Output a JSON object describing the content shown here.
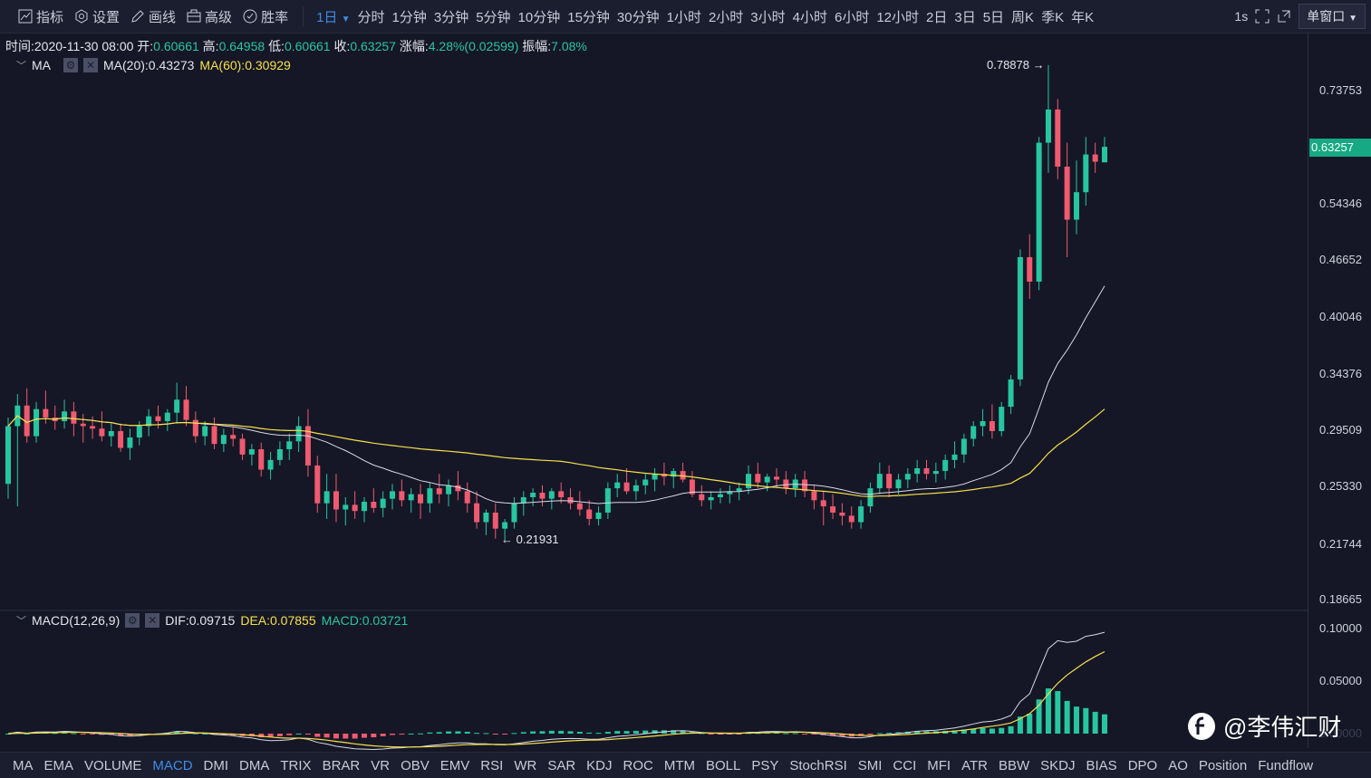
{
  "toolbar": {
    "tools": [
      {
        "icon": "indicator-icon",
        "label": "指标"
      },
      {
        "icon": "settings-gear-icon",
        "label": "设置"
      },
      {
        "icon": "pencil-icon",
        "label": "画线"
      },
      {
        "icon": "advanced-icon",
        "label": "高级"
      },
      {
        "icon": "winrate-icon",
        "label": "胜率"
      }
    ],
    "intervals": [
      "1日",
      "分时",
      "1分钟",
      "3分钟",
      "5分钟",
      "10分钟",
      "15分钟",
      "30分钟",
      "1小时",
      "2小时",
      "3小时",
      "4小时",
      "6小时",
      "12小时",
      "2日",
      "3日",
      "5日",
      "周K",
      "季K",
      "年K"
    ],
    "active_interval": "1日",
    "right": {
      "refresh": "1s",
      "window_mode": "单窗口"
    }
  },
  "info": {
    "time_label": "时间:",
    "time": "2020-11-30 08:00",
    "open_label": "开:",
    "open": "0.60661",
    "high_label": "高:",
    "high": "0.64958",
    "low_label": "低:",
    "low": "0.60661",
    "close_label": "收:",
    "close": "0.63257",
    "change_label": "涨幅:",
    "change": "4.28%(0.02599)",
    "amp_label": "振幅:",
    "amp": "7.08%"
  },
  "ma_legend": {
    "name": "MA",
    "ma20": "MA(20):0.43273",
    "ma60": "MA(60):0.30929"
  },
  "macd_legend": {
    "name": "MACD(12,26,9)",
    "dif": "DIF:0.09715",
    "dea": "DEA:0.07855",
    "macd": "MACD:0.03721"
  },
  "price_axis": {
    "ticks": [
      "0.73753",
      "0.63257",
      "0.54346",
      "0.46652",
      "0.40046",
      "0.34376",
      "0.29509",
      "0.25330",
      "0.21744",
      "0.18665"
    ],
    "current": "0.63257"
  },
  "macd_axis": {
    "ticks": [
      "0.10000",
      "0.05000",
      "0.00000"
    ]
  },
  "annotations": {
    "high": "0.78878 →",
    "low": "← 0.21931"
  },
  "indicators": [
    "MA",
    "EMA",
    "VOLUME",
    "MACD",
    "DMI",
    "DMA",
    "TRIX",
    "BRAR",
    "VR",
    "OBV",
    "EMV",
    "RSI",
    "WR",
    "SAR",
    "KDJ",
    "ROC",
    "MTM",
    "BOLL",
    "PSY",
    "StochRSI",
    "SMI",
    "CCI",
    "MFI",
    "ATR",
    "BBW",
    "SKDJ",
    "BIAS",
    "DPO",
    "AO",
    "Position",
    "Fundflow"
  ],
  "active_indicator": "MACD",
  "watermark": "@李伟汇财",
  "colors": {
    "up": "#26c6a0",
    "down": "#ef5a6f",
    "ma20": "#d8dae6",
    "ma60": "#f5e04a",
    "bg": "#151726",
    "accent": "#3c8ce7"
  },
  "chart_data": {
    "type": "candlestick",
    "interval": "1日",
    "y_range": [
      0.18665,
      0.78878
    ],
    "scale": "log",
    "candles": [
      [
        0.255,
        0.305,
        0.245,
        0.298
      ],
      [
        0.298,
        0.325,
        0.24,
        0.315
      ],
      [
        0.315,
        0.33,
        0.285,
        0.29
      ],
      [
        0.29,
        0.318,
        0.285,
        0.312
      ],
      [
        0.312,
        0.328,
        0.3,
        0.305
      ],
      [
        0.305,
        0.315,
        0.295,
        0.302
      ],
      [
        0.302,
        0.32,
        0.296,
        0.31
      ],
      [
        0.31,
        0.318,
        0.29,
        0.3
      ],
      [
        0.3,
        0.308,
        0.285,
        0.298
      ],
      [
        0.298,
        0.306,
        0.288,
        0.296
      ],
      [
        0.296,
        0.31,
        0.286,
        0.29
      ],
      [
        0.29,
        0.3,
        0.282,
        0.294
      ],
      [
        0.294,
        0.3,
        0.278,
        0.281
      ],
      [
        0.281,
        0.296,
        0.272,
        0.289
      ],
      [
        0.289,
        0.302,
        0.283,
        0.298
      ],
      [
        0.298,
        0.312,
        0.29,
        0.306
      ],
      [
        0.306,
        0.315,
        0.296,
        0.302
      ],
      [
        0.302,
        0.312,
        0.294,
        0.309
      ],
      [
        0.309,
        0.335,
        0.3,
        0.32
      ],
      [
        0.32,
        0.332,
        0.298,
        0.303
      ],
      [
        0.303,
        0.31,
        0.285,
        0.29
      ],
      [
        0.29,
        0.302,
        0.283,
        0.298
      ],
      [
        0.298,
        0.305,
        0.28,
        0.284
      ],
      [
        0.284,
        0.296,
        0.278,
        0.291
      ],
      [
        0.291,
        0.298,
        0.282,
        0.288
      ],
      [
        0.288,
        0.292,
        0.272,
        0.276
      ],
      [
        0.276,
        0.284,
        0.268,
        0.28
      ],
      [
        0.28,
        0.285,
        0.26,
        0.265
      ],
      [
        0.265,
        0.278,
        0.258,
        0.272
      ],
      [
        0.272,
        0.286,
        0.268,
        0.28
      ],
      [
        0.28,
        0.292,
        0.272,
        0.286
      ],
      [
        0.286,
        0.306,
        0.278,
        0.298
      ],
      [
        0.298,
        0.312,
        0.26,
        0.268
      ],
      [
        0.268,
        0.275,
        0.236,
        0.242
      ],
      [
        0.242,
        0.262,
        0.232,
        0.25
      ],
      [
        0.25,
        0.262,
        0.23,
        0.238
      ],
      [
        0.238,
        0.246,
        0.228,
        0.241
      ],
      [
        0.241,
        0.25,
        0.232,
        0.237
      ],
      [
        0.237,
        0.246,
        0.23,
        0.243
      ],
      [
        0.243,
        0.252,
        0.236,
        0.239
      ],
      [
        0.239,
        0.25,
        0.233,
        0.245
      ],
      [
        0.245,
        0.255,
        0.238,
        0.25
      ],
      [
        0.25,
        0.258,
        0.24,
        0.244
      ],
      [
        0.244,
        0.252,
        0.236,
        0.248
      ],
      [
        0.248,
        0.255,
        0.232,
        0.242
      ],
      [
        0.242,
        0.256,
        0.236,
        0.252
      ],
      [
        0.252,
        0.262,
        0.242,
        0.248
      ],
      [
        0.248,
        0.258,
        0.24,
        0.254
      ],
      [
        0.254,
        0.264,
        0.244,
        0.25
      ],
      [
        0.25,
        0.256,
        0.236,
        0.242
      ],
      [
        0.242,
        0.25,
        0.226,
        0.23
      ],
      [
        0.23,
        0.238,
        0.222,
        0.236
      ],
      [
        0.236,
        0.242,
        0.22,
        0.226
      ],
      [
        0.226,
        0.232,
        0.219,
        0.23
      ],
      [
        0.23,
        0.246,
        0.226,
        0.242
      ],
      [
        0.242,
        0.25,
        0.234,
        0.246
      ],
      [
        0.246,
        0.252,
        0.24,
        0.249
      ],
      [
        0.249,
        0.254,
        0.24,
        0.245
      ],
      [
        0.245,
        0.252,
        0.238,
        0.25
      ],
      [
        0.25,
        0.256,
        0.242,
        0.246
      ],
      [
        0.246,
        0.252,
        0.238,
        0.242
      ],
      [
        0.242,
        0.25,
        0.234,
        0.238
      ],
      [
        0.238,
        0.244,
        0.228,
        0.232
      ],
      [
        0.232,
        0.24,
        0.228,
        0.236
      ],
      [
        0.236,
        0.256,
        0.232,
        0.252
      ],
      [
        0.252,
        0.262,
        0.246,
        0.256
      ],
      [
        0.256,
        0.266,
        0.248,
        0.25
      ],
      [
        0.25,
        0.258,
        0.244,
        0.254
      ],
      [
        0.254,
        0.262,
        0.248,
        0.258
      ],
      [
        0.258,
        0.266,
        0.25,
        0.262
      ],
      [
        0.262,
        0.27,
        0.254,
        0.26
      ],
      [
        0.26,
        0.266,
        0.252,
        0.264
      ],
      [
        0.264,
        0.27,
        0.256,
        0.258
      ],
      [
        0.258,
        0.264,
        0.246,
        0.248
      ],
      [
        0.248,
        0.254,
        0.24,
        0.244
      ],
      [
        0.244,
        0.25,
        0.238,
        0.246
      ],
      [
        0.246,
        0.252,
        0.242,
        0.248
      ],
      [
        0.248,
        0.254,
        0.242,
        0.25
      ],
      [
        0.25,
        0.256,
        0.244,
        0.252
      ],
      [
        0.252,
        0.268,
        0.248,
        0.262
      ],
      [
        0.262,
        0.27,
        0.252,
        0.256
      ],
      [
        0.256,
        0.262,
        0.25,
        0.26
      ],
      [
        0.26,
        0.266,
        0.252,
        0.258
      ],
      [
        0.258,
        0.264,
        0.248,
        0.252
      ],
      [
        0.252,
        0.262,
        0.246,
        0.258
      ],
      [
        0.258,
        0.264,
        0.246,
        0.25
      ],
      [
        0.25,
        0.254,
        0.238,
        0.244
      ],
      [
        0.244,
        0.25,
        0.228,
        0.24
      ],
      [
        0.24,
        0.248,
        0.232,
        0.236
      ],
      [
        0.236,
        0.242,
        0.228,
        0.234
      ],
      [
        0.234,
        0.24,
        0.226,
        0.23
      ],
      [
        0.23,
        0.244,
        0.226,
        0.24
      ],
      [
        0.24,
        0.256,
        0.236,
        0.252
      ],
      [
        0.252,
        0.27,
        0.248,
        0.262
      ],
      [
        0.262,
        0.268,
        0.246,
        0.252
      ],
      [
        0.252,
        0.262,
        0.248,
        0.258
      ],
      [
        0.258,
        0.266,
        0.252,
        0.262
      ],
      [
        0.262,
        0.272,
        0.256,
        0.266
      ],
      [
        0.266,
        0.272,
        0.258,
        0.262
      ],
      [
        0.262,
        0.27,
        0.256,
        0.264
      ],
      [
        0.264,
        0.276,
        0.258,
        0.272
      ],
      [
        0.272,
        0.286,
        0.266,
        0.276
      ],
      [
        0.276,
        0.292,
        0.27,
        0.288
      ],
      [
        0.288,
        0.302,
        0.282,
        0.298
      ],
      [
        0.298,
        0.312,
        0.29,
        0.302
      ],
      [
        0.302,
        0.316,
        0.288,
        0.294
      ],
      [
        0.294,
        0.318,
        0.29,
        0.314
      ],
      [
        0.314,
        0.342,
        0.308,
        0.338
      ],
      [
        0.338,
        0.48,
        0.332,
        0.47
      ],
      [
        0.47,
        0.5,
        0.42,
        0.44
      ],
      [
        0.44,
        0.65,
        0.43,
        0.64
      ],
      [
        0.64,
        0.789,
        0.59,
        0.7
      ],
      [
        0.7,
        0.72,
        0.58,
        0.6
      ],
      [
        0.6,
        0.64,
        0.47,
        0.52
      ],
      [
        0.52,
        0.61,
        0.5,
        0.56
      ],
      [
        0.56,
        0.65,
        0.54,
        0.62
      ],
      [
        0.62,
        0.64,
        0.59,
        0.608
      ],
      [
        0.607,
        0.65,
        0.607,
        0.633
      ]
    ]
  }
}
